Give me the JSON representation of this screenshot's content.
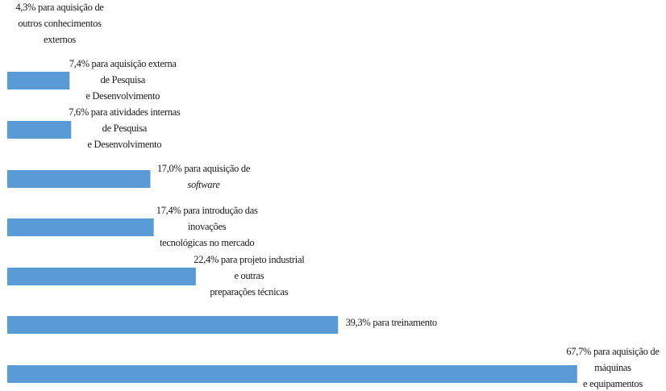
{
  "chart_data": {
    "type": "bar",
    "orientation": "horizontal",
    "bar_color": "#5b9bd5",
    "grid": false,
    "legend": "none",
    "xlim": [
      0,
      70
    ],
    "categories": [
      [
        "4,3% para aquisição de",
        "outros conhecimentos",
        "externos"
      ],
      [
        "7,4% para aquisição externa",
        "de Pesquisa",
        "e Desenvolvimento"
      ],
      [
        "7,6% para atividades internas",
        "de Pesquisa",
        "e Desenvolvimento"
      ],
      [
        "17,0% para aquisição de",
        "software"
      ],
      [
        "17,4% para introdução das",
        "inovações",
        "tecnológicas no mercado"
      ],
      [
        "22,4% para projeto industrial",
        "e outras",
        "preparações técnicas"
      ],
      [
        "39,3% para treinamento"
      ],
      [
        "67,7%  para aquisição de",
        "máquinas",
        "e equipamentos"
      ]
    ],
    "italic_lines": [
      [
        3,
        1
      ]
    ],
    "values": [
      4.3,
      7.4,
      7.6,
      17.0,
      17.4,
      22.4,
      39.3,
      67.7
    ]
  }
}
